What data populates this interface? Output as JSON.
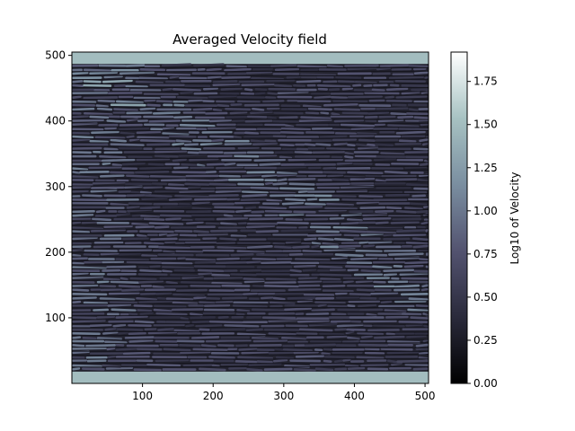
{
  "chart_data": {
    "type": "heatmap",
    "title": "Averaged Velocity field",
    "xlabel": "",
    "ylabel": "",
    "xlim": [
      0,
      505
    ],
    "ylim": [
      0,
      505
    ],
    "x_ticks": [
      100,
      200,
      300,
      400,
      500
    ],
    "y_ticks": [
      100,
      200,
      300,
      400,
      500
    ],
    "colormap": "bone",
    "colorbar": {
      "label": "Log10 of Velocity",
      "range": [
        0,
        1.92
      ],
      "ticks": [
        0.0,
        0.25,
        0.5,
        0.75,
        1.0,
        1.25,
        1.5,
        1.75
      ],
      "tick_labels": [
        "0.00",
        "0.25",
        "0.50",
        "0.75",
        "1.00",
        "1.25",
        "1.50",
        "1.75"
      ]
    },
    "features": {
      "wall_band_value": 1.5,
      "interior_stripe_value": 0.7,
      "gap_value": 0.15
    }
  },
  "colors": {
    "bone_stops": [
      "#000000",
      "#2b2b3c",
      "#555570",
      "#7a8ea0",
      "#a8c6c6",
      "#ffffff"
    ]
  }
}
